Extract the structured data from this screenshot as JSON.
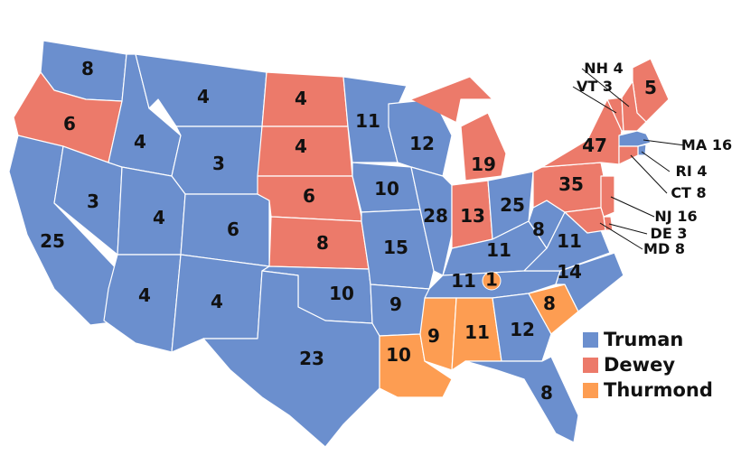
{
  "legend": [
    {
      "name": "Truman",
      "color": "#6b8fce"
    },
    {
      "name": "Dewey",
      "color": "#ec7a6a"
    },
    {
      "name": "Thurmond",
      "color": "#fd9d52"
    }
  ],
  "states": [
    {
      "votes": 8,
      "color": "#6b8fce"
    },
    {
      "votes": 6,
      "color": "#ec7a6a"
    },
    {
      "votes": 25,
      "color": "#6b8fce"
    },
    {
      "votes": 3,
      "color": "#6b8fce"
    },
    {
      "votes": 4,
      "color": "#6b8fce"
    },
    {
      "votes": 4,
      "color": "#6b8fce"
    },
    {
      "votes": 3,
      "color": "#6b8fce"
    },
    {
      "votes": 4,
      "color": "#6b8fce"
    },
    {
      "votes": 6,
      "color": "#6b8fce"
    },
    {
      "votes": 4,
      "color": "#6b8fce"
    },
    {
      "votes": 4,
      "color": "#6b8fce"
    },
    {
      "votes": 4,
      "color": "#ec7a6a"
    },
    {
      "votes": 4,
      "color": "#ec7a6a"
    },
    {
      "votes": 6,
      "color": "#ec7a6a"
    },
    {
      "votes": 8,
      "color": "#ec7a6a"
    },
    {
      "votes": 10,
      "color": "#6b8fce"
    },
    {
      "votes": 23,
      "color": "#6b8fce"
    },
    {
      "votes": 11,
      "color": "#6b8fce"
    },
    {
      "votes": 10,
      "color": "#6b8fce"
    },
    {
      "votes": 15,
      "color": "#6b8fce"
    },
    {
      "votes": 9,
      "color": "#6b8fce"
    },
    {
      "votes": 10,
      "color": "#fd9d52"
    },
    {
      "votes": 12,
      "color": "#6b8fce"
    },
    {
      "votes": 28,
      "color": "#6b8fce"
    },
    {
      "votes": 19,
      "color": "#ec7a6a"
    },
    {
      "votes": 13,
      "color": "#ec7a6a"
    },
    {
      "votes": 25,
      "color": "#6b8fce"
    },
    {
      "votes": 11,
      "color": "#6b8fce"
    },
    {
      "votes": 11,
      "color": "#6b8fce"
    },
    {
      "votes": 9,
      "color": "#fd9d52"
    },
    {
      "votes": 11,
      "color": "#fd9d52"
    },
    {
      "votes": 12,
      "color": "#6b8fce"
    },
    {
      "votes": 8,
      "color": "#6b8fce"
    },
    {
      "votes": 8,
      "color": "#fd9d52"
    },
    {
      "votes": 14,
      "color": "#6b8fce"
    },
    {
      "votes": 11,
      "color": "#6b8fce"
    },
    {
      "votes": 8,
      "color": "#6b8fce"
    },
    {
      "votes": 35,
      "color": "#ec7a6a"
    },
    {
      "votes": 47,
      "color": "#ec7a6a"
    },
    {
      "votes": 5,
      "color": "#ec7a6a"
    },
    {
      "name": "VT",
      "votes": 3,
      "color": "#ec7a6a"
    },
    {
      "name": "NH",
      "votes": 4,
      "color": "#ec7a6a"
    },
    {
      "name": "MA",
      "votes": 16,
      "color": "#6b8fce"
    },
    {
      "name": "RI",
      "votes": 4,
      "color": "#6b8fce"
    },
    {
      "name": "CT",
      "votes": 8,
      "color": "#ec7a6a"
    },
    {
      "name": "NJ",
      "votes": 16,
      "color": "#ec7a6a"
    },
    {
      "name": "DE",
      "votes": 3,
      "color": "#ec7a6a"
    },
    {
      "name": "MD",
      "votes": 8,
      "color": "#ec7a6a"
    }
  ],
  "split": {
    "votes": 1,
    "color": "#fd9d52"
  }
}
